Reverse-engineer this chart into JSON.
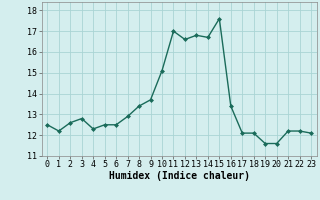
{
  "x": [
    0,
    1,
    2,
    3,
    4,
    5,
    6,
    7,
    8,
    9,
    10,
    11,
    12,
    13,
    14,
    15,
    16,
    17,
    18,
    19,
    20,
    21,
    22,
    23
  ],
  "y": [
    12.5,
    12.2,
    12.6,
    12.8,
    12.3,
    12.5,
    12.5,
    12.9,
    13.4,
    13.7,
    15.1,
    17.0,
    16.6,
    16.8,
    16.7,
    17.6,
    13.4,
    12.1,
    12.1,
    11.6,
    11.6,
    12.2,
    12.2,
    12.1
  ],
  "line_color": "#1a6b5a",
  "marker": "D",
  "marker_size": 2.0,
  "line_width": 1.0,
  "bg_color": "#d4eeee",
  "grid_color": "#aad4d4",
  "xlabel": "Humidex (Indice chaleur)",
  "ylim": [
    11,
    18.4
  ],
  "yticks": [
    11,
    12,
    13,
    14,
    15,
    16,
    17,
    18
  ],
  "xticks": [
    0,
    1,
    2,
    3,
    4,
    5,
    6,
    7,
    8,
    9,
    10,
    11,
    12,
    13,
    14,
    15,
    16,
    17,
    18,
    19,
    20,
    21,
    22,
    23
  ],
  "xlabel_fontsize": 7.0,
  "tick_fontsize": 6.0
}
